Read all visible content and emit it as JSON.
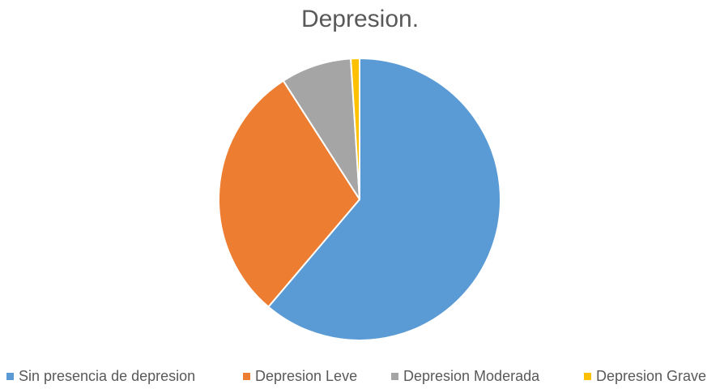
{
  "chart_data": {
    "type": "pie",
    "title": "Depresion.",
    "categories": [
      "Sin presencia de depresion",
      "Depresion Leve",
      "Depresion Moderada",
      "Depresion Grave"
    ],
    "values": [
      61.2,
      29.7,
      8.1,
      1.0
    ],
    "colors": [
      "#5B9BD5",
      "#ED7D31",
      "#A5A5A5",
      "#FFC000"
    ],
    "legend_position": "bottom",
    "start_angle_deg": 0,
    "direction": "clockwise"
  }
}
